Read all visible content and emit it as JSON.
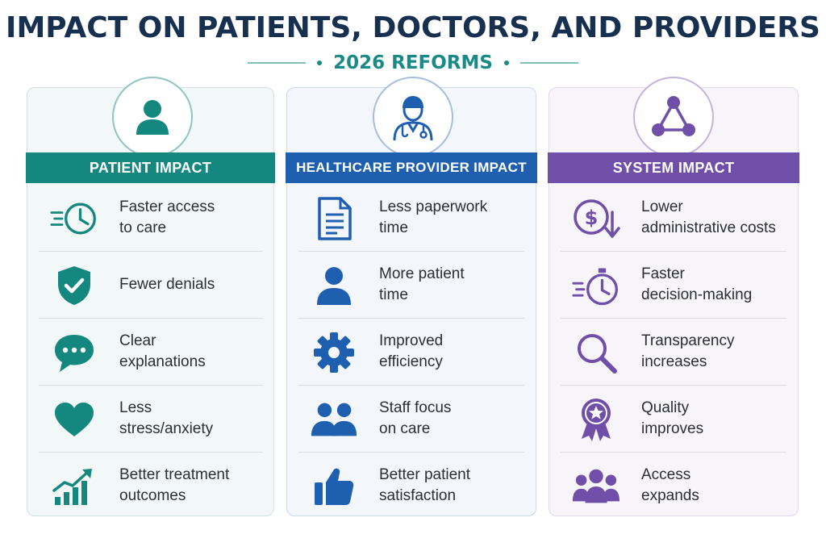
{
  "header": {
    "title": "IMPACT ON PATIENTS, DOCTORS, AND PROVIDERS",
    "subtitle": "2026 REFORMS"
  },
  "colors": {
    "patient": "#14877f",
    "provider": "#1f5fb0",
    "system": "#6f4fa8",
    "title": "#17304f"
  },
  "columns": [
    {
      "heading": "PATIENT IMPACT",
      "icon": "person-icon",
      "items": [
        {
          "icon": "fast-clock-icon",
          "lines": [
            "Faster access",
            "to care"
          ]
        },
        {
          "icon": "shield-check-icon",
          "lines": [
            "Fewer denials"
          ]
        },
        {
          "icon": "chat-bubble-icon",
          "lines": [
            "Clear",
            "explanations"
          ]
        },
        {
          "icon": "heart-icon",
          "lines": [
            "Less",
            "stress/anxiety"
          ]
        },
        {
          "icon": "growth-chart-icon",
          "lines": [
            "Better treatment",
            "outcomes"
          ]
        }
      ]
    },
    {
      "heading": "HEALTHCARE PROVIDER IMPACT",
      "icon": "doctor-icon",
      "items": [
        {
          "icon": "document-icon",
          "lines": [
            "Less paperwork",
            "time"
          ]
        },
        {
          "icon": "person-icon",
          "lines": [
            "More patient",
            "time"
          ]
        },
        {
          "icon": "gear-icon",
          "lines": [
            "Improved",
            "efficiency"
          ]
        },
        {
          "icon": "people-icon",
          "lines": [
            "Staff focus",
            "on care"
          ]
        },
        {
          "icon": "thumbs-up-icon",
          "lines": [
            "Better patient",
            "satisfaction"
          ]
        }
      ]
    },
    {
      "heading": "SYSTEM IMPACT",
      "icon": "network-icon",
      "items": [
        {
          "icon": "dollar-down-icon",
          "lines": [
            "Lower",
            "administrative costs"
          ]
        },
        {
          "icon": "stopwatch-icon",
          "lines": [
            "Faster",
            "decision-making"
          ]
        },
        {
          "icon": "magnifier-icon",
          "lines": [
            "Transparency",
            "increases"
          ]
        },
        {
          "icon": "award-icon",
          "lines": [
            "Quality",
            "improves"
          ]
        },
        {
          "icon": "group-icon",
          "lines": [
            "Access",
            "expands"
          ]
        }
      ]
    }
  ]
}
